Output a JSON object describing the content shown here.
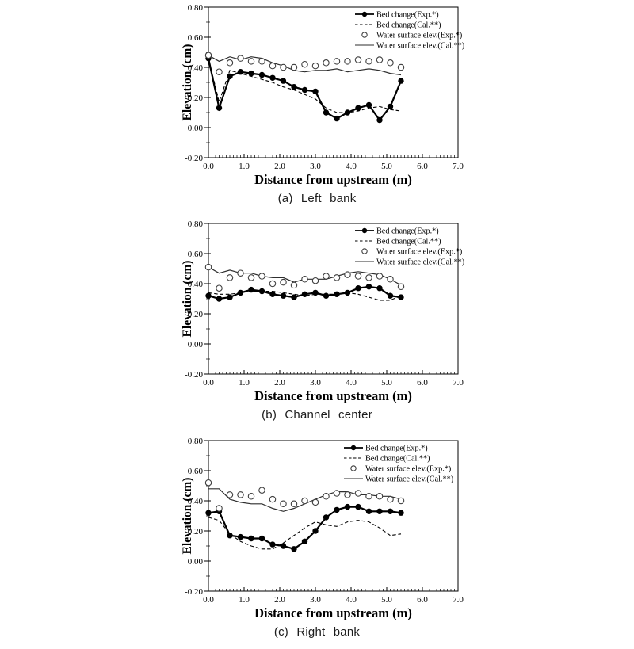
{
  "figure": {
    "background": "#ffffff",
    "ink": "#000000",
    "open_circle_color": "#3f3f3f",
    "water_line_color": "#2e2e2e"
  },
  "chart_data": [
    {
      "id": "left-bank",
      "type": "line",
      "caption": "(a) Left bank",
      "xlabel": "Distance from upstream (m)",
      "ylabel": "Elevation (cm)",
      "xlim": [
        0.0,
        7.0
      ],
      "ylim": [
        -0.2,
        0.8
      ],
      "xticks": [
        {
          "v": 0,
          "t": "0.0"
        },
        {
          "v": 1,
          "t": "1.0"
        },
        {
          "v": 2,
          "t": "2.0"
        },
        {
          "v": 3,
          "t": "3.0"
        },
        {
          "v": 4,
          "t": "4.0"
        },
        {
          "v": 5,
          "t": "5.0"
        },
        {
          "v": 6,
          "t": "6.0"
        },
        {
          "v": 7,
          "t": "7.0"
        }
      ],
      "yticks": [
        {
          "v": 0.8,
          "t": "0.80"
        },
        {
          "v": 0.6,
          "t": "0.60"
        },
        {
          "v": 0.4,
          "t": "0.40"
        },
        {
          "v": 0.2,
          "t": "0.20"
        },
        {
          "v": 0.0,
          "t": "0.00"
        },
        {
          "v": -0.2,
          "t": "-0.20"
        }
      ],
      "x_minor_step": 0.1,
      "y_minor_step": 0.1,
      "grid": false,
      "legend_position": "top-right",
      "x": [
        0.0,
        0.3,
        0.6,
        0.9,
        1.2,
        1.5,
        1.8,
        2.1,
        2.4,
        2.7,
        3.0,
        3.3,
        3.6,
        3.9,
        4.2,
        4.5,
        4.8,
        5.1,
        5.4
      ],
      "series": [
        {
          "label": "Bed change(Exp.*)",
          "marker": "filled-circle",
          "line": "solid-thick",
          "values": [
            0.46,
            0.13,
            0.34,
            0.37,
            0.36,
            0.35,
            0.33,
            0.31,
            0.27,
            0.25,
            0.24,
            0.1,
            0.06,
            0.1,
            0.13,
            0.15,
            0.05,
            0.14,
            0.31
          ]
        },
        {
          "label": "Bed change(Cal.**)",
          "marker": "none",
          "line": "dashed",
          "values": [
            0.46,
            0.17,
            0.38,
            0.36,
            0.34,
            0.32,
            0.3,
            0.27,
            0.25,
            0.22,
            0.19,
            0.13,
            0.1,
            0.1,
            0.11,
            0.13,
            0.14,
            0.12,
            0.11
          ]
        },
        {
          "label": "Water surface elev.(Exp.*)",
          "marker": "open-circle",
          "line": "none",
          "values": [
            0.48,
            0.37,
            0.43,
            0.46,
            0.44,
            0.44,
            0.41,
            0.4,
            0.4,
            0.42,
            0.41,
            0.43,
            0.44,
            0.44,
            0.45,
            0.44,
            0.45,
            0.43,
            0.4
          ]
        },
        {
          "label": "Water surface elev.(Cal.**)",
          "marker": "none",
          "line": "solid-thin",
          "values": [
            0.48,
            0.44,
            0.47,
            0.45,
            0.47,
            0.46,
            0.43,
            0.41,
            0.38,
            0.37,
            0.38,
            0.38,
            0.39,
            0.37,
            0.38,
            0.39,
            0.38,
            0.36,
            0.35
          ]
        }
      ]
    },
    {
      "id": "channel-center",
      "type": "line",
      "caption": "(b) Channel center",
      "xlabel": "Distance from upstream (m)",
      "ylabel": "Elevation (cm)",
      "xlim": [
        0.0,
        7.0
      ],
      "ylim": [
        -0.2,
        0.8
      ],
      "xticks": [
        {
          "v": 0,
          "t": "0.0"
        },
        {
          "v": 1,
          "t": "1.0"
        },
        {
          "v": 2,
          "t": "2.0"
        },
        {
          "v": 3,
          "t": "3.0"
        },
        {
          "v": 4,
          "t": "4.0"
        },
        {
          "v": 5,
          "t": "5.0"
        },
        {
          "v": 6,
          "t": "6.0"
        },
        {
          "v": 7,
          "t": "7.0"
        }
      ],
      "yticks": [
        {
          "v": 0.8,
          "t": "0.80"
        },
        {
          "v": 0.6,
          "t": "0.60"
        },
        {
          "v": 0.4,
          "t": "0.40"
        },
        {
          "v": 0.2,
          "t": "0.20"
        },
        {
          "v": 0.0,
          "t": "0.00"
        },
        {
          "v": -0.2,
          "t": "-0.20"
        }
      ],
      "x_minor_step": 0.1,
      "y_minor_step": 0.1,
      "grid": false,
      "legend_position": "top-right",
      "x": [
        0.0,
        0.3,
        0.6,
        0.9,
        1.2,
        1.5,
        1.8,
        2.1,
        2.4,
        2.7,
        3.0,
        3.3,
        3.6,
        3.9,
        4.2,
        4.5,
        4.8,
        5.1,
        5.4
      ],
      "series": [
        {
          "label": "Bed change(Exp.*)",
          "marker": "filled-circle",
          "line": "solid-thick",
          "values": [
            0.32,
            0.3,
            0.31,
            0.34,
            0.36,
            0.35,
            0.33,
            0.32,
            0.31,
            0.33,
            0.34,
            0.32,
            0.33,
            0.34,
            0.37,
            0.38,
            0.37,
            0.32,
            0.31
          ]
        },
        {
          "label": "Bed change(Cal.**)",
          "marker": "none",
          "line": "dashed",
          "values": [
            0.34,
            0.33,
            0.33,
            0.34,
            0.35,
            0.35,
            0.35,
            0.34,
            0.33,
            0.32,
            0.33,
            0.33,
            0.33,
            0.34,
            0.33,
            0.31,
            0.29,
            0.29,
            0.32
          ]
        },
        {
          "label": "Water surface elev.(Exp.*)",
          "marker": "open-circle",
          "line": "none",
          "values": [
            0.51,
            0.37,
            0.44,
            0.47,
            0.44,
            0.45,
            0.4,
            0.41,
            0.39,
            0.43,
            0.42,
            0.45,
            0.44,
            0.46,
            0.45,
            0.44,
            0.45,
            0.43,
            0.38
          ]
        },
        {
          "label": "Water surface elev.(Cal.**)",
          "marker": "none",
          "line": "solid-thin",
          "values": [
            0.51,
            0.47,
            0.49,
            0.47,
            0.47,
            0.45,
            0.44,
            0.44,
            0.41,
            0.43,
            0.43,
            0.43,
            0.45,
            0.47,
            0.48,
            0.47,
            0.46,
            0.43,
            0.39
          ]
        }
      ]
    },
    {
      "id": "right-bank",
      "type": "line",
      "caption": "(c) Right bank",
      "xlabel": "Distance from upstream (m)",
      "ylabel": "Elevation (cm)",
      "xlim": [
        0.0,
        7.0
      ],
      "ylim": [
        -0.2,
        0.8
      ],
      "xticks": [
        {
          "v": 0,
          "t": "0.0"
        },
        {
          "v": 1,
          "t": "1.0"
        },
        {
          "v": 2,
          "t": "2.0"
        },
        {
          "v": 3,
          "t": "3.0"
        },
        {
          "v": 4,
          "t": "4.0"
        },
        {
          "v": 5,
          "t": "5.0"
        },
        {
          "v": 6,
          "t": "6.0"
        },
        {
          "v": 7,
          "t": "7.0"
        }
      ],
      "yticks": [
        {
          "v": 0.8,
          "t": "0.80"
        },
        {
          "v": 0.6,
          "t": "0.60"
        },
        {
          "v": 0.4,
          "t": "0.40"
        },
        {
          "v": 0.2,
          "t": "0.20"
        },
        {
          "v": 0.0,
          "t": "0.00"
        },
        {
          "v": -0.2,
          "t": "-0.20"
        }
      ],
      "x_minor_step": 0.1,
      "y_minor_step": 0.1,
      "grid": false,
      "legend_position": "top-right",
      "x": [
        0.0,
        0.3,
        0.6,
        0.9,
        1.2,
        1.5,
        1.8,
        2.1,
        2.4,
        2.7,
        3.0,
        3.3,
        3.6,
        3.9,
        4.2,
        4.5,
        4.8,
        5.1,
        5.4
      ],
      "series": [
        {
          "label": "Bed change(Exp.*)",
          "marker": "filled-circle",
          "line": "solid-thick",
          "values": [
            0.32,
            0.33,
            0.17,
            0.16,
            0.15,
            0.15,
            0.11,
            0.1,
            0.08,
            0.13,
            0.2,
            0.29,
            0.34,
            0.36,
            0.36,
            0.33,
            0.33,
            0.33,
            0.32
          ]
        },
        {
          "label": "Bed change(Cal.**)",
          "marker": "none",
          "line": "dashed",
          "values": [
            0.29,
            0.27,
            0.18,
            0.13,
            0.1,
            0.08,
            0.08,
            0.12,
            0.17,
            0.22,
            0.26,
            0.24,
            0.23,
            0.26,
            0.27,
            0.26,
            0.22,
            0.17,
            0.18
          ]
        },
        {
          "label": "Water surface elev.(Exp.*)",
          "marker": "open-circle",
          "line": "none",
          "values": [
            0.52,
            0.35,
            0.44,
            0.44,
            0.43,
            0.47,
            0.41,
            0.38,
            0.38,
            0.4,
            0.39,
            0.43,
            0.45,
            0.44,
            0.45,
            0.43,
            0.43,
            0.41,
            0.4
          ]
        },
        {
          "label": "Water surface elev.(Cal.**)",
          "marker": "none",
          "line": "solid-thin",
          "values": [
            0.48,
            0.48,
            0.41,
            0.39,
            0.38,
            0.38,
            0.35,
            0.33,
            0.35,
            0.38,
            0.41,
            0.44,
            0.46,
            0.46,
            0.44,
            0.44,
            0.43,
            0.43,
            0.41
          ]
        }
      ]
    }
  ]
}
